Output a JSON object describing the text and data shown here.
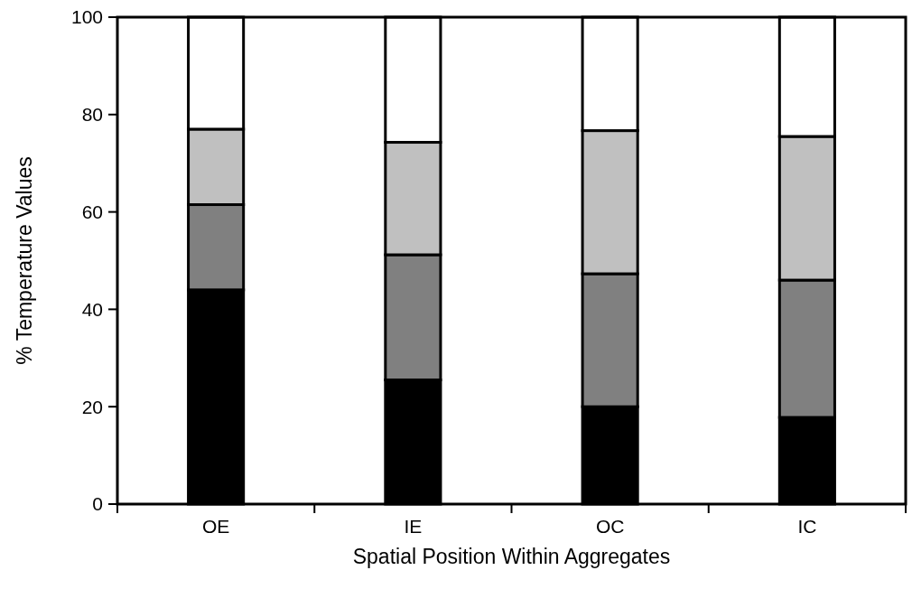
{
  "chart_data": {
    "type": "bar",
    "stacked": true,
    "xlabel": "Spatial Position Within Aggregates",
    "ylabel": "% Temperature Values",
    "categories": [
      "OE",
      "IE",
      "OC",
      "IC"
    ],
    "series": [
      {
        "color": "#000000",
        "values": [
          44,
          25.5,
          20,
          17.8
        ]
      },
      {
        "color": "#808080",
        "values": [
          17.5,
          25.7,
          27.3,
          28.2
        ]
      },
      {
        "color": "#c0c0c0",
        "values": [
          15.5,
          23.1,
          29.4,
          29.5
        ]
      },
      {
        "color": "#ffffff",
        "values": [
          23,
          25.7,
          23.3,
          24.5
        ]
      }
    ],
    "ylim": [
      0,
      100
    ],
    "yticks": [
      0,
      20,
      40,
      60,
      80,
      100
    ],
    "grid": false
  }
}
